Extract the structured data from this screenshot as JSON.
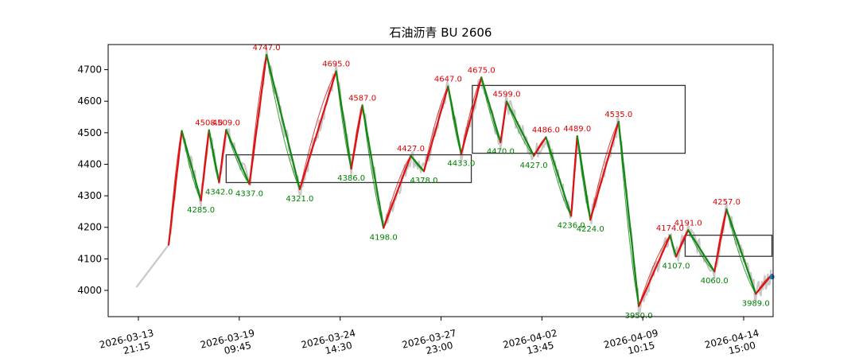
{
  "chart_data": {
    "type": "line",
    "title": "石油沥青 BU 2606",
    "ylim": [
      3915,
      4790
    ],
    "y_ticks": [
      "4000",
      "4100",
      "4200",
      "4300",
      "4400",
      "4500",
      "4600",
      "4700"
    ],
    "x_ticks": [
      {
        "date": "2026-03-13",
        "time": "21:15"
      },
      {
        "date": "2026-03-19",
        "time": "09:45"
      },
      {
        "date": "2026-03-24",
        "time": "14:30"
      },
      {
        "date": "2026-03-27",
        "time": "23:00"
      },
      {
        "date": "2026-04-02",
        "time": "13:45"
      },
      {
        "date": "2026-04-09",
        "time": "10:15"
      },
      {
        "date": "2026-04-14",
        "time": "15:00"
      }
    ],
    "x_note": "x is the bar index (0-600); tick labels mark bars 0,100,...,600",
    "xlim": [
      -14,
      628
    ],
    "colors": {
      "price": "#c8c8c8",
      "up_stroke": "#dd1111",
      "down_stroke": "#118811",
      "peak_label": "#dd0000",
      "trough_label": "#008000",
      "box": "#333333",
      "last_point": "#1f77b4"
    },
    "strokes": [
      [
        30,
        4145
      ],
      [
        43,
        4506
      ],
      [
        62,
        4285
      ],
      [
        70,
        4508
      ],
      [
        80,
        4342
      ],
      [
        87,
        4509
      ],
      [
        110,
        4337
      ],
      [
        127,
        4747
      ],
      [
        160,
        4321
      ],
      [
        196,
        4695
      ],
      [
        211,
        4386
      ],
      [
        222,
        4587
      ],
      [
        243,
        4198
      ],
      [
        270,
        4427
      ],
      [
        283,
        4378
      ],
      [
        307,
        4647
      ],
      [
        320,
        4433
      ],
      [
        340,
        4675
      ],
      [
        359,
        4470
      ],
      [
        365,
        4599
      ],
      [
        392,
        4427
      ],
      [
        404,
        4486
      ],
      [
        429,
        4236
      ],
      [
        435,
        4489
      ],
      [
        448,
        4224
      ],
      [
        476,
        4535
      ],
      [
        496,
        3950
      ],
      [
        527,
        4174
      ],
      [
        533,
        4107
      ],
      [
        545,
        4191
      ],
      [
        571,
        4060
      ],
      [
        583,
        4257
      ],
      [
        612,
        3989
      ],
      [
        628,
        4050
      ]
    ],
    "peak_labels": [
      "4508.0",
      "4509.0",
      "4747.0",
      "4695.0",
      "4587.0",
      "4427.0",
      "4647.0",
      "4675.0",
      "4599.0",
      "4486.0",
      "4489.0",
      "4535.0",
      "4174.0",
      "4191.0",
      "4257.0"
    ],
    "trough_labels": [
      "4285.0",
      "4342.0",
      "4337.0",
      "4321.0",
      "4386.0",
      "4198.0",
      "4378.0",
      "4433.0",
      "4470.0",
      "4427.0",
      "4236.0",
      "4224.0",
      "3950.0",
      "4107.0",
      "4060.0",
      "3989.0"
    ],
    "peak_points": [
      [
        70,
        4508
      ],
      [
        87,
        4509
      ],
      [
        127,
        4747
      ],
      [
        196,
        4695
      ],
      [
        222,
        4587
      ],
      [
        270,
        4427
      ],
      [
        307,
        4647
      ],
      [
        340,
        4675
      ],
      [
        365,
        4599
      ],
      [
        404,
        4486
      ],
      [
        435,
        4489
      ],
      [
        476,
        4535
      ],
      [
        527,
        4174
      ],
      [
        545,
        4191
      ],
      [
        583,
        4257
      ]
    ],
    "trough_points": [
      [
        62,
        4285
      ],
      [
        80,
        4342
      ],
      [
        110,
        4337
      ],
      [
        160,
        4321
      ],
      [
        211,
        4386
      ],
      [
        243,
        4198
      ],
      [
        283,
        4378
      ],
      [
        320,
        4433
      ],
      [
        359,
        4470
      ],
      [
        392,
        4427
      ],
      [
        429,
        4236
      ],
      [
        448,
        4224
      ],
      [
        496,
        3950
      ],
      [
        533,
        4107
      ],
      [
        571,
        4060
      ],
      [
        612,
        3989
      ]
    ],
    "boxes": [
      {
        "x0": 87,
        "x1": 330,
        "y0": 4342,
        "y1": 4430
      },
      {
        "x0": 331,
        "x1": 542,
        "y0": 4435,
        "y1": 4650
      },
      {
        "x0": 542,
        "x1": 628,
        "y0": 4108,
        "y1": 4175
      }
    ],
    "last_point": [
      628,
      4043
    ],
    "grid": false,
    "legend": "none"
  }
}
